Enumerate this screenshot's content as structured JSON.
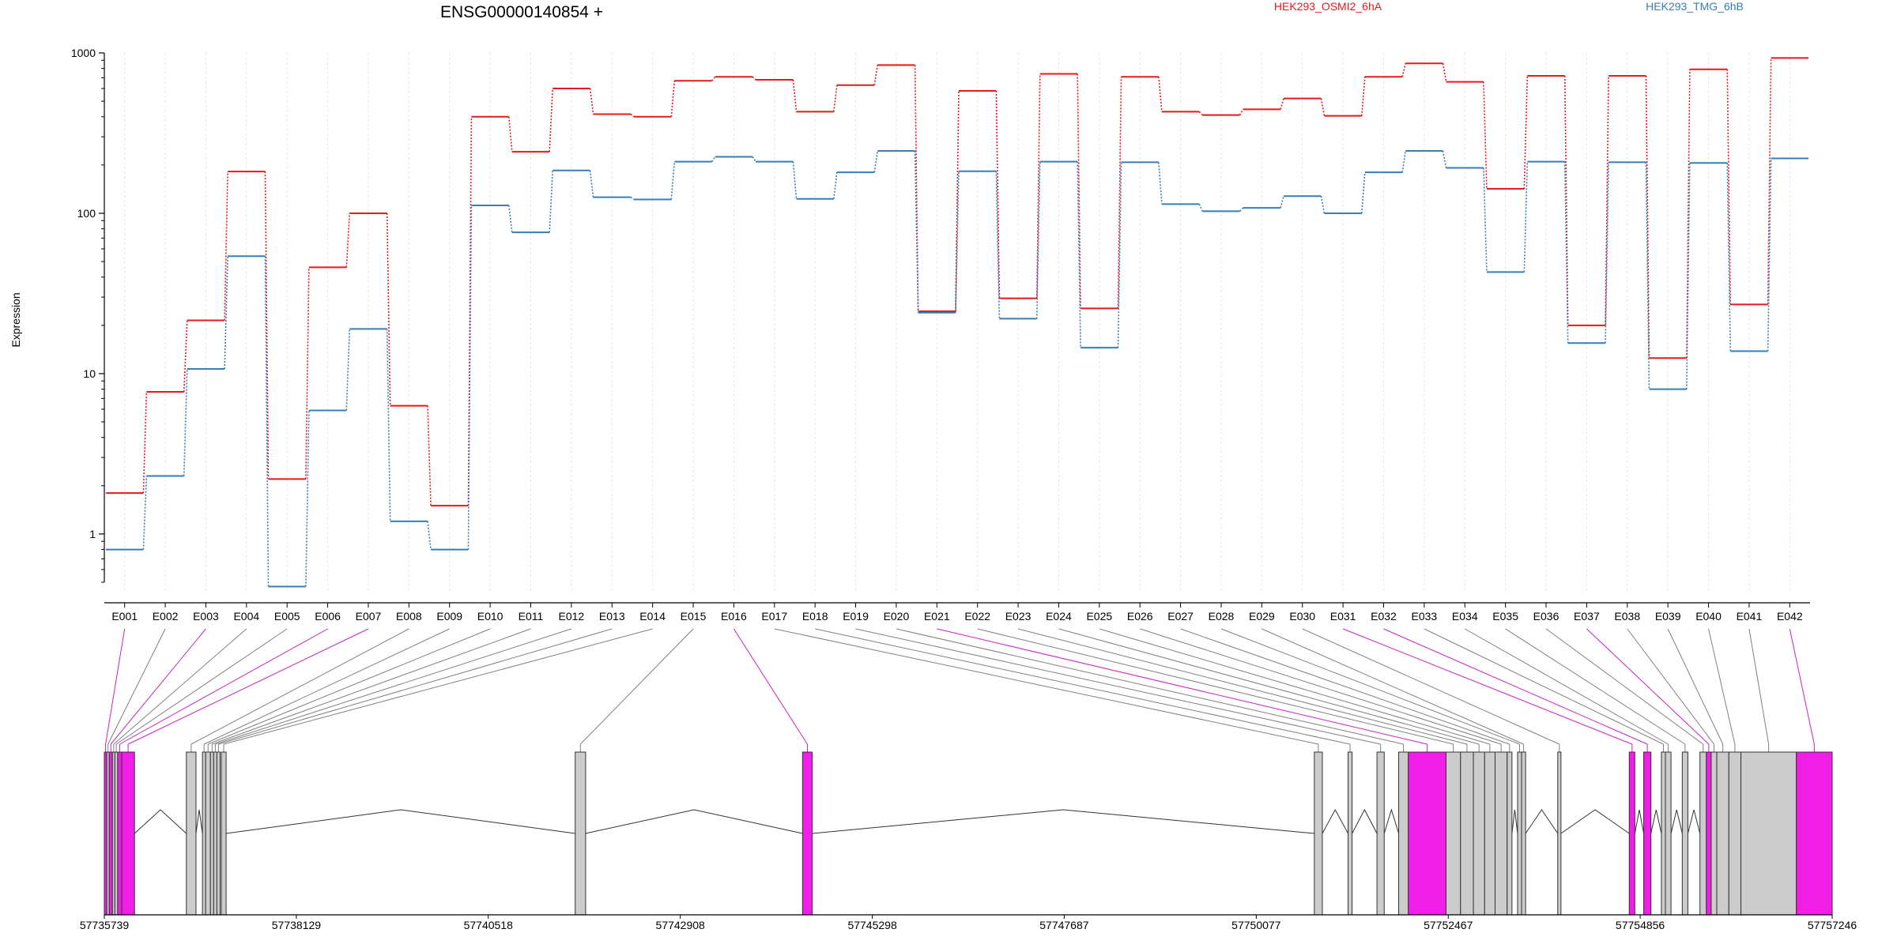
{
  "chart_data": {
    "type": "line",
    "title": "ENSG00000140854 +",
    "ylabel": "Expression",
    "y_scale": "log",
    "ylim": [
      0.5,
      1000
    ],
    "y_ticks": [
      1,
      10,
      100,
      1000
    ],
    "y_tick_labels": [
      "1",
      "10",
      "100",
      "1000"
    ],
    "categories": [
      "E001",
      "E002",
      "E003",
      "E004",
      "E005",
      "E006",
      "E007",
      "E008",
      "E009",
      "E010",
      "E011",
      "E012",
      "E013",
      "E014",
      "E015",
      "E016",
      "E017",
      "E018",
      "E019",
      "E020",
      "E021",
      "E022",
      "E023",
      "E024",
      "E025",
      "E026",
      "E027",
      "E028",
      "E029",
      "E030",
      "E031",
      "E032",
      "E033",
      "E034",
      "E035",
      "E036",
      "E037",
      "E038",
      "E039",
      "E040",
      "E041",
      "E042"
    ],
    "series": [
      {
        "name": "HEK293_OSMI2_6hA",
        "color": "#e41a1c",
        "values": [
          1.8,
          7.7,
          21.5,
          182,
          2.2,
          46,
          100,
          6.3,
          1.5,
          400,
          242,
          600,
          415,
          400,
          670,
          710,
          680,
          430,
          630,
          840,
          24.5,
          580,
          29.5,
          740,
          25.5,
          710,
          430,
          410,
          445,
          520,
          405,
          710,
          860,
          660,
          142,
          720,
          20,
          720,
          12.5,
          790,
          27,
          930
        ]
      },
      {
        "name": "HEK293_TMG_6hB",
        "color": "#377eb8",
        "values": [
          0.8,
          2.3,
          10.7,
          54,
          0.47,
          5.9,
          19,
          1.2,
          0.8,
          112,
          76,
          185,
          126,
          122,
          210,
          225,
          210,
          123,
          180,
          245,
          24,
          183,
          22,
          210,
          14.5,
          208,
          114,
          103,
          108,
          128,
          100,
          180,
          245,
          192,
          43,
          210,
          15.5,
          208,
          8,
          206,
          13.8,
          220
        ]
      }
    ],
    "grid": false,
    "legend": "top-right",
    "genomic_axis": {
      "ticks": [
        "57735739",
        "57738129",
        "57740518",
        "57742908",
        "57745298",
        "57747687",
        "57750077",
        "57752467",
        "57754856",
        "57757246"
      ],
      "range": [
        57735739,
        57757246
      ]
    },
    "exons": [
      {
        "id": "E001",
        "start": 57735739,
        "end": 57735770,
        "highlight": true
      },
      {
        "id": "E002",
        "start": 57735770,
        "end": 57735800,
        "highlight": false
      },
      {
        "id": "E003",
        "start": 57735800,
        "end": 57735840,
        "highlight": true
      },
      {
        "id": "E004",
        "start": 57735840,
        "end": 57735870,
        "highlight": false
      },
      {
        "id": "E005",
        "start": 57735870,
        "end": 57735905,
        "highlight": false
      },
      {
        "id": "E006",
        "start": 57735905,
        "end": 57735955,
        "highlight": true
      },
      {
        "id": "E007",
        "start": 57735955,
        "end": 57736115,
        "highlight": true
      },
      {
        "id": "E008",
        "start": 57736760,
        "end": 57736880,
        "highlight": false
      },
      {
        "id": "E009",
        "start": 57736960,
        "end": 57737000,
        "highlight": false
      },
      {
        "id": "E010",
        "start": 57737000,
        "end": 57737060,
        "highlight": false
      },
      {
        "id": "E011",
        "start": 57737060,
        "end": 57737100,
        "highlight": false
      },
      {
        "id": "E012",
        "start": 57737100,
        "end": 57737140,
        "highlight": false
      },
      {
        "id": "E013",
        "start": 57737140,
        "end": 57737180,
        "highlight": false
      },
      {
        "id": "E014",
        "start": 57737195,
        "end": 57737255,
        "highlight": false
      },
      {
        "id": "E015",
        "start": 57741600,
        "end": 57741730,
        "highlight": false
      },
      {
        "id": "E016",
        "start": 57744430,
        "end": 57744550,
        "highlight": true
      },
      {
        "id": "E017",
        "start": 57750800,
        "end": 57750900,
        "highlight": false
      },
      {
        "id": "E018",
        "start": 57751220,
        "end": 57751270,
        "highlight": false
      },
      {
        "id": "E019",
        "start": 57751580,
        "end": 57751670,
        "highlight": false
      },
      {
        "id": "E020",
        "start": 57751850,
        "end": 57751970,
        "highlight": false
      },
      {
        "id": "E021",
        "start": 57751970,
        "end": 57752440,
        "highlight": true
      },
      {
        "id": "E022",
        "start": 57752440,
        "end": 57752620,
        "highlight": false
      },
      {
        "id": "E023",
        "start": 57752620,
        "end": 57752780,
        "highlight": false
      },
      {
        "id": "E024",
        "start": 57752780,
        "end": 57752920,
        "highlight": false
      },
      {
        "id": "E025",
        "start": 57752920,
        "end": 57753050,
        "highlight": false
      },
      {
        "id": "E026",
        "start": 57753050,
        "end": 57753200,
        "highlight": false
      },
      {
        "id": "E027",
        "start": 57753200,
        "end": 57753260,
        "highlight": false
      },
      {
        "id": "E028",
        "start": 57753330,
        "end": 57753380,
        "highlight": false
      },
      {
        "id": "E029",
        "start": 57753380,
        "end": 57753430,
        "highlight": false
      },
      {
        "id": "E030",
        "start": 57753830,
        "end": 57753870,
        "highlight": false
      },
      {
        "id": "E031",
        "start": 57754720,
        "end": 57754790,
        "highlight": true
      },
      {
        "id": "E032",
        "start": 57754900,
        "end": 57754990,
        "highlight": true
      },
      {
        "id": "E033",
        "start": 57755120,
        "end": 57755170,
        "highlight": false
      },
      {
        "id": "E034",
        "start": 57755170,
        "end": 57755240,
        "highlight": false
      },
      {
        "id": "E035",
        "start": 57755380,
        "end": 57755450,
        "highlight": false
      },
      {
        "id": "E036",
        "start": 57755600,
        "end": 57755680,
        "highlight": false
      },
      {
        "id": "E037",
        "start": 57755680,
        "end": 57755740,
        "highlight": true
      },
      {
        "id": "E038",
        "start": 57755740,
        "end": 57755810,
        "highlight": false
      },
      {
        "id": "E039",
        "start": 57755810,
        "end": 57755960,
        "highlight": false
      },
      {
        "id": "E040",
        "start": 57755960,
        "end": 57756110,
        "highlight": false
      },
      {
        "id": "E041",
        "start": 57756110,
        "end": 57756800,
        "highlight": false
      },
      {
        "id": "E042",
        "start": 57756800,
        "end": 57757246,
        "highlight": true
      }
    ]
  }
}
